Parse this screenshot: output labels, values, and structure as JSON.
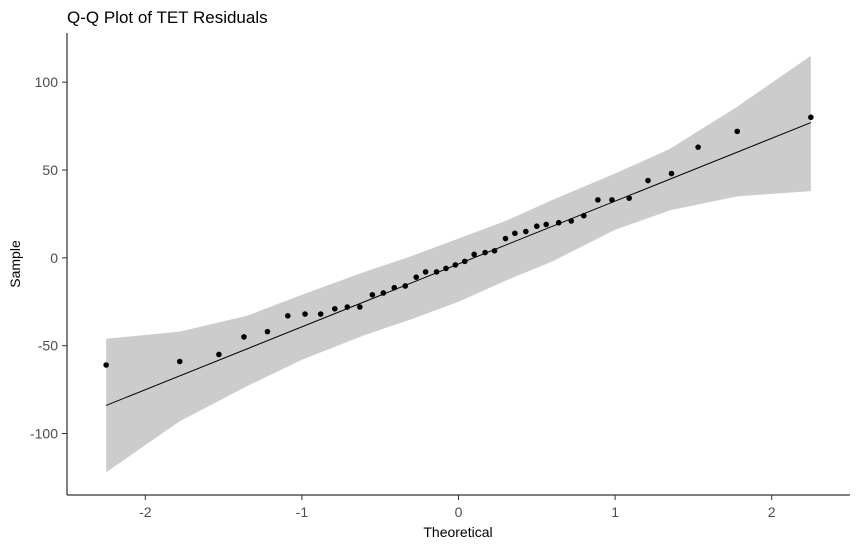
{
  "chart_data": {
    "type": "scatter",
    "title": "Q-Q Plot of TET Residuals",
    "xlabel": "Theoretical",
    "ylabel": "Sample",
    "xlim": [
      -2.5,
      2.5
    ],
    "ylim": [
      -135,
      128
    ],
    "x_ticks": [
      -2,
      -1,
      0,
      1,
      2
    ],
    "x_tick_labels": [
      "-2",
      "-1",
      "0",
      "1",
      "2"
    ],
    "y_ticks": [
      -100,
      -50,
      0,
      50,
      100
    ],
    "y_tick_labels": [
      "-100",
      "-50",
      "0",
      "50",
      "100"
    ],
    "grid": false,
    "legend": "none",
    "colors": {
      "points": "#000000",
      "line": "#000000",
      "band": "#cccccc",
      "axis": "#000000"
    },
    "reference_line": {
      "x": [
        -2.25,
        2.25
      ],
      "y": [
        -84,
        77
      ]
    },
    "confidence_band": {
      "x": [
        -2.25,
        -1.78,
        -1.35,
        -1.0,
        -0.6,
        -0.3,
        0.0,
        0.3,
        0.6,
        1.0,
        1.35,
        1.78,
        2.25
      ],
      "lower": [
        -122,
        -93,
        -73,
        -58,
        -44,
        -35,
        -25,
        -13,
        -2,
        16,
        27,
        35,
        38
      ],
      "upper": [
        -46,
        -42,
        -33,
        -21,
        -8,
        1,
        11,
        21,
        33,
        48,
        62,
        86,
        115
      ]
    },
    "points": {
      "x": [
        -2.25,
        -1.78,
        -1.53,
        -1.37,
        -1.22,
        -1.09,
        -0.98,
        -0.88,
        -0.79,
        -0.71,
        -0.63,
        -0.55,
        -0.48,
        -0.41,
        -0.34,
        -0.27,
        -0.21,
        -0.14,
        -0.08,
        -0.02,
        0.04,
        0.1,
        0.17,
        0.23,
        0.3,
        0.36,
        0.43,
        0.5,
        0.56,
        0.64,
        0.72,
        0.8,
        0.89,
        0.98,
        1.09,
        1.21,
        1.36,
        1.53,
        1.78,
        2.25
      ],
      "y": [
        -61,
        -59,
        -55,
        -45,
        -42,
        -33,
        -32,
        -32,
        -29,
        -28,
        -28,
        -21,
        -20,
        -17,
        -16,
        -11,
        -8,
        -8,
        -6,
        -4,
        -2,
        2,
        3,
        4,
        11,
        14,
        15,
        18,
        19,
        20,
        21,
        24,
        33,
        33,
        34,
        44,
        48,
        63,
        72,
        80
      ]
    }
  }
}
